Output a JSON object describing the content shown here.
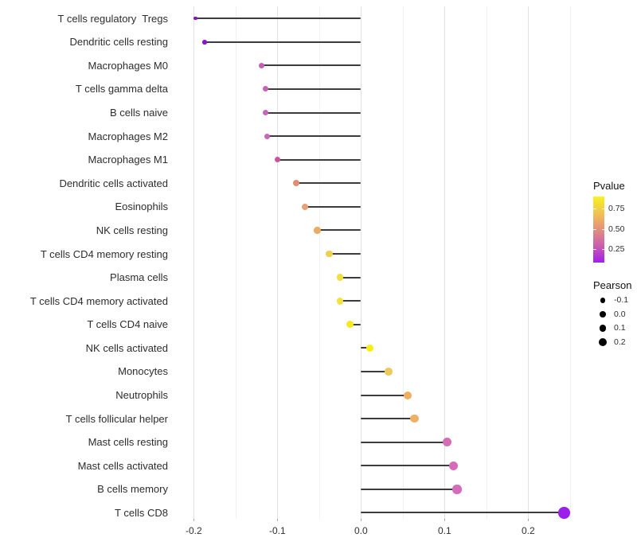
{
  "chart_data": {
    "type": "lollipop",
    "title": "",
    "xlabel": "",
    "ylabel": "",
    "x_tick_values": [
      -0.2,
      -0.1,
      0.0,
      0.1,
      0.2
    ],
    "x_tick_labels": [
      "-0.2",
      "-0.1",
      "0.0",
      "0.1",
      "0.2"
    ],
    "x_minor_gridline_values": [
      -0.15,
      -0.05,
      0.05,
      0.15,
      0.25
    ],
    "xlim": [
      -0.224,
      0.26
    ],
    "grid": "vertical-only",
    "points": [
      {
        "label": "T cells regulatory  Tregs",
        "pearson": -0.198,
        "color": "#8912C6",
        "diameter": 4.5
      },
      {
        "label": "Dendritic cells resting",
        "pearson": -0.187,
        "color": "#8E14CB",
        "diameter": 5.5
      },
      {
        "label": "Macrophages M0",
        "pearson": -0.119,
        "color": "#C75EB6",
        "diameter": 7
      },
      {
        "label": "T cells gamma delta",
        "pearson": -0.114,
        "color": "#C961B4",
        "diameter": 7
      },
      {
        "label": "B cells naive",
        "pearson": -0.114,
        "color": "#C965B8",
        "diameter": 7
      },
      {
        "label": "Macrophages M2",
        "pearson": -0.112,
        "color": "#C967BB",
        "diameter": 7.2
      },
      {
        "label": "Macrophages M1",
        "pearson": -0.1,
        "color": "#C9549F",
        "diameter": 7.5
      },
      {
        "label": "Dendritic cells activated",
        "pearson": -0.077,
        "color": "#E08D72",
        "diameter": 8
      },
      {
        "label": "Eosinophils",
        "pearson": -0.067,
        "color": "#EB9F77",
        "diameter": 8.5
      },
      {
        "label": "NK cells resting",
        "pearson": -0.052,
        "color": "#EDAA62",
        "diameter": 8.5
      },
      {
        "label": "T cells CD4 memory resting",
        "pearson": -0.038,
        "color": "#F0CF4A",
        "diameter": 8.5
      },
      {
        "label": "Plasma cells",
        "pearson": -0.025,
        "color": "#F2E03C",
        "diameter": 8.7
      },
      {
        "label": "T cells CD4 memory activated",
        "pearson": -0.025,
        "color": "#F2E343",
        "diameter": 8.7
      },
      {
        "label": "T cells CD4 naive",
        "pearson": -0.013,
        "color": "#F5E920",
        "diameter": 9
      },
      {
        "label": "NK cells activated",
        "pearson": 0.011,
        "color": "#F6EF15",
        "diameter": 9.3
      },
      {
        "label": "Monocytes",
        "pearson": 0.033,
        "color": "#EEC95E",
        "diameter": 9.5
      },
      {
        "label": "Neutrophils",
        "pearson": 0.056,
        "color": "#EEB05E",
        "diameter": 10
      },
      {
        "label": "T cells follicular helper",
        "pearson": 0.064,
        "color": "#EDB066",
        "diameter": 10.3
      },
      {
        "label": "Mast cells resting",
        "pearson": 0.103,
        "color": "#D46DB4",
        "diameter": 11
      },
      {
        "label": "Mast cells activated",
        "pearson": 0.111,
        "color": "#D66CB8",
        "diameter": 11.3
      },
      {
        "label": "B cells memory",
        "pearson": 0.115,
        "color": "#D56CBB",
        "diameter": 11.3
      },
      {
        "label": "T cells CD8",
        "pearson": 0.243,
        "color": "#9C20EB",
        "diameter": 14.5
      }
    ],
    "legend": {
      "pvalue": {
        "title": "Pvalue",
        "tick_labels": [
          "0.75",
          "0.50",
          "0.25"
        ],
        "gradient_stops_top_to_bottom": [
          "#F8F11E",
          "#F1C351",
          "#E2907E",
          "#C95CAE",
          "#A21FE9"
        ]
      },
      "pearson": {
        "title": "Pearson",
        "dot_color": "#000000",
        "entries": [
          {
            "label": "-0.1",
            "diameter": 6.7
          },
          {
            "label": "0.0",
            "diameter": 7.7
          },
          {
            "label": "0.1",
            "diameter": 8.7
          },
          {
            "label": "0.2",
            "diameter": 10
          }
        ]
      }
    },
    "style_colors": {
      "stem": "#3C3C3C",
      "grid_major": "#E2E2E2",
      "grid_minor": "#F1F1F1",
      "axis_text": "#303030",
      "background": "#FFFFFF"
    }
  }
}
